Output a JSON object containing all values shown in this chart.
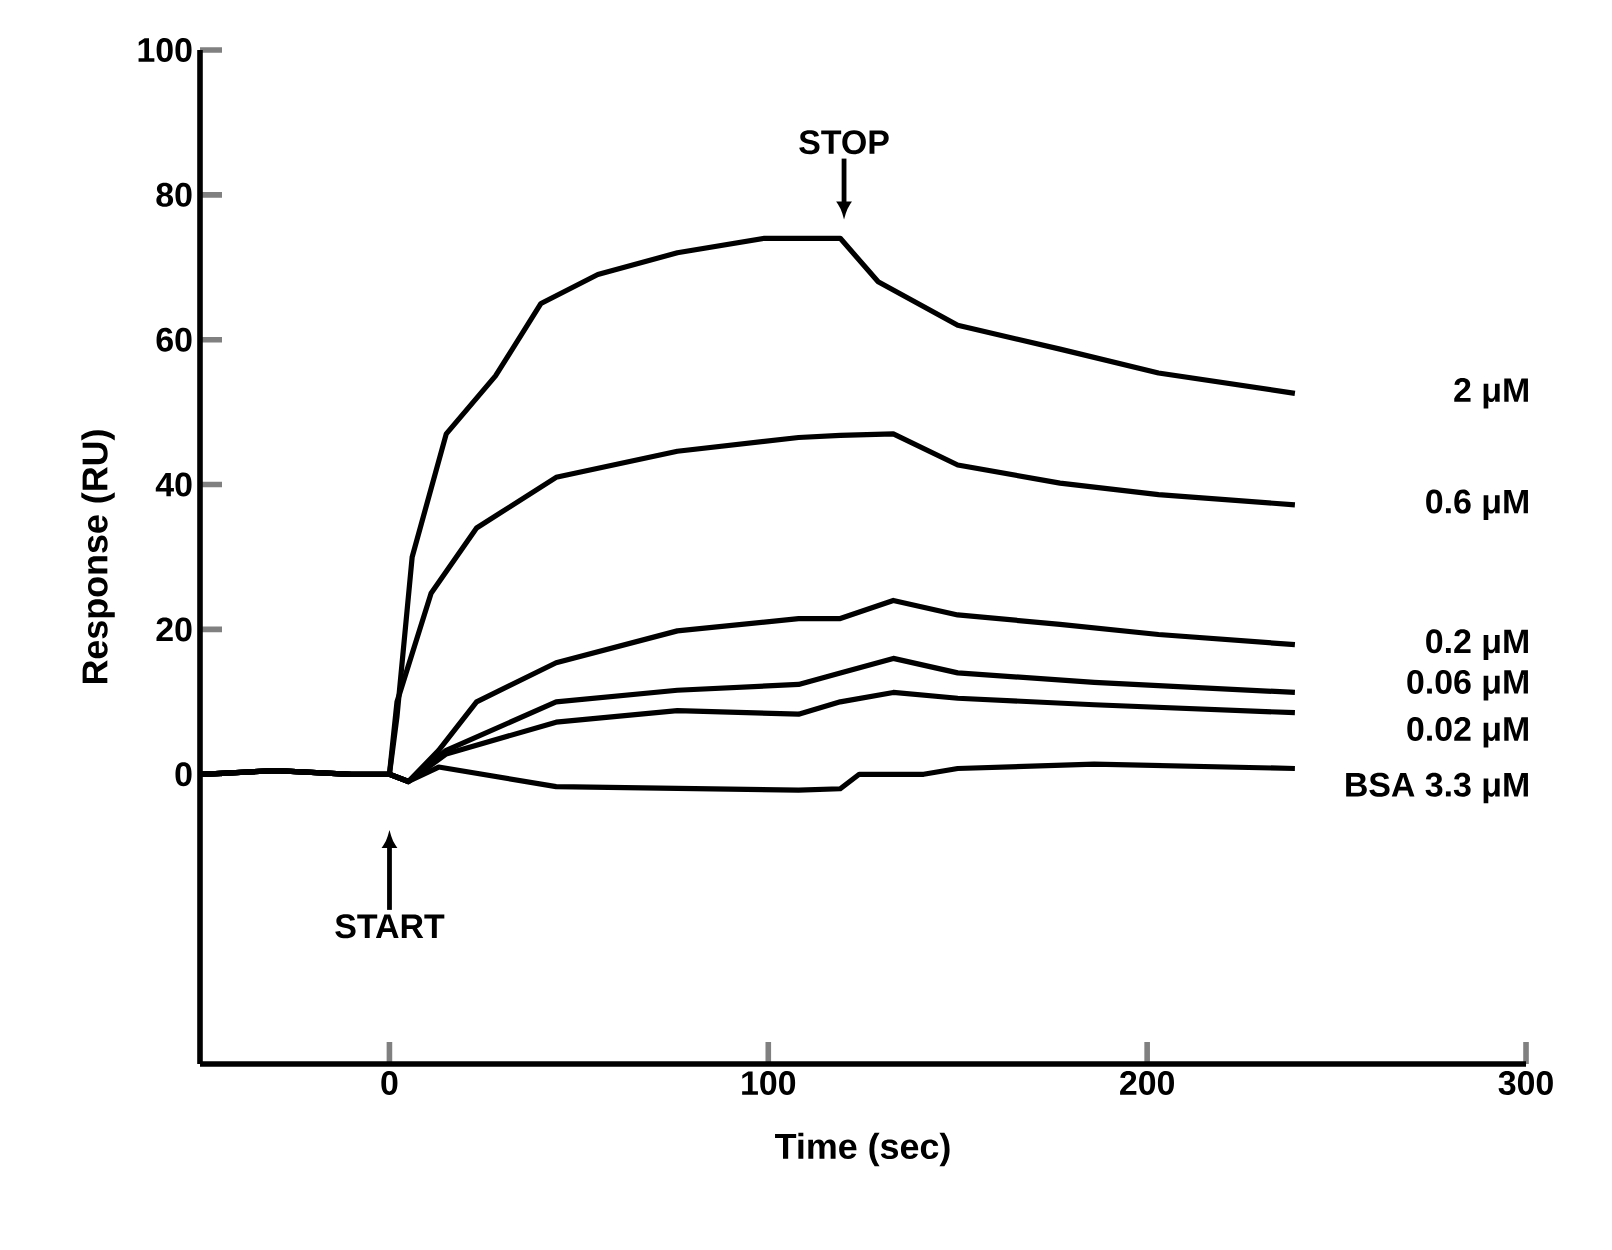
{
  "chart_data": {
    "type": "line",
    "xlabel": "Time (sec)",
    "ylabel": "Response (RU)",
    "xlim": [
      -50,
      300
    ],
    "ylim": [
      -40,
      100
    ],
    "xticks": [
      0,
      100,
      200,
      300
    ],
    "yticks": [
      0,
      20,
      40,
      60,
      80,
      100
    ],
    "grid": false,
    "legend": false,
    "line_style": "solid",
    "series": [
      {
        "name": "2 μM",
        "color": "#000000",
        "x": [
          -50,
          -30,
          -10,
          0,
          2,
          6,
          15,
          28,
          40,
          55,
          76,
          99,
          119,
          129,
          150,
          177,
          203,
          239
        ],
        "values": [
          0,
          0.5,
          0,
          0,
          8,
          30,
          47,
          55,
          65,
          69,
          72,
          74,
          74,
          68,
          62,
          58.7,
          55.4,
          52.6
        ]
      },
      {
        "name": "0.6 μM",
        "color": "#000000",
        "x": [
          -50,
          -30,
          -10,
          0,
          2,
          11,
          23,
          44,
          76,
          108,
          119,
          133,
          150,
          177,
          203,
          239
        ],
        "values": [
          0,
          0.5,
          0,
          0,
          10,
          25,
          34,
          41,
          44.6,
          46.5,
          46.8,
          47,
          42.7,
          40.2,
          38.6,
          37.2
        ]
      },
      {
        "name": "0.2 μM",
        "color": "#000000",
        "x": [
          -50,
          -30,
          -10,
          0,
          5,
          13,
          23,
          44,
          76,
          108,
          119,
          133,
          150,
          177,
          203,
          239
        ],
        "values": [
          0,
          0.5,
          0,
          0,
          -1,
          3.3,
          10,
          15.4,
          19.8,
          21.5,
          21.5,
          24,
          22,
          20.7,
          19.3,
          17.9
        ]
      },
      {
        "name": "0.06 μM",
        "color": "#000000",
        "x": [
          -50,
          -30,
          -10,
          0,
          5,
          15,
          44,
          76,
          108,
          119,
          133,
          150,
          186,
          239
        ],
        "values": [
          0,
          0.5,
          0,
          0,
          -1,
          3.3,
          10,
          11.6,
          12.4,
          14,
          16,
          14,
          12.7,
          11.3
        ]
      },
      {
        "name": "0.02 μM",
        "color": "#000000",
        "x": [
          -50,
          -30,
          -10,
          0,
          5,
          15,
          44,
          76,
          108,
          119,
          133,
          150,
          186,
          239
        ],
        "values": [
          0,
          0.5,
          0,
          0,
          -1,
          2.8,
          7.2,
          8.8,
          8.3,
          10,
          11.3,
          10.5,
          9.6,
          8.5
        ]
      },
      {
        "name": "BSA 3.3 μM",
        "color": "#000000",
        "x": [
          -50,
          -30,
          -10,
          0,
          5,
          13,
          44,
          108,
          119,
          124,
          141,
          150,
          186,
          239
        ],
        "values": [
          0,
          0.5,
          0,
          0,
          -1,
          1,
          -1.7,
          -2.2,
          -2,
          0,
          0,
          0.8,
          1.4,
          0.8
        ]
      }
    ],
    "annotations": [
      "START",
      "STOP"
    ]
  }
}
